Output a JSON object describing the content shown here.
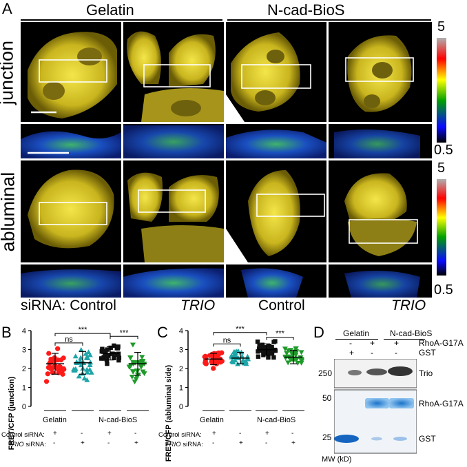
{
  "panel_A": {
    "letter": "A",
    "conditions": [
      "Gelatin",
      "N-cad-BioS"
    ],
    "rows": [
      "junction",
      "abluminal"
    ],
    "colorbar": {
      "max": "5",
      "min": "0.5"
    },
    "sirna_prefix": "siRNA:",
    "column_labels": [
      "Control",
      "TRIO",
      "Control",
      "TRIO"
    ]
  },
  "panel_B": {
    "letter": "B",
    "ylabel": "FRET/CFP (junction)",
    "yticks": [
      "0",
      "1",
      "2",
      "3",
      "4"
    ],
    "groups": [
      "Gelatin",
      "N-cad-BioS"
    ],
    "row1_label": "Control siRNA:",
    "row2_label_italic": "TRIO",
    "row2_label_rest": " siRNA:",
    "row1_signs": [
      "+",
      "-",
      "+",
      "-"
    ],
    "row2_signs": [
      "-",
      "+",
      "-",
      "+"
    ],
    "sig": [
      "***",
      "ns",
      "***"
    ]
  },
  "panel_C": {
    "letter": "C",
    "ylabel": "FRET/CFP (abluminal side)",
    "yticks": [
      "0",
      "1",
      "2",
      "3",
      "4"
    ],
    "groups": [
      "Gelatin",
      "N-cad-BioS"
    ],
    "row1_label": "Control siRNA:",
    "row2_label_italic": "TRIO",
    "row2_label_rest": " siRNA:",
    "row1_signs": [
      "+",
      "-",
      "+",
      "-"
    ],
    "row2_signs": [
      "-",
      "+",
      "-",
      "+"
    ],
    "sig": [
      "***",
      "ns",
      "***"
    ]
  },
  "panel_D": {
    "letter": "D",
    "groups": [
      "Gelatin",
      "N-cad-BioS"
    ],
    "row_rhoa_label": "RhoA-G17A",
    "row_gst_label": "GST",
    "row_rhoa_signs": [
      "-",
      "+",
      "+"
    ],
    "row_gst_signs": [
      "+",
      "-",
      "-"
    ],
    "bands": [
      "Trio",
      "RhoA-G17A",
      "GST"
    ],
    "mw_markers": [
      "250",
      "50",
      "25"
    ],
    "mw_label": "MW (kD)"
  },
  "chart_data": [
    {
      "type": "scatter",
      "title": "",
      "ylabel": "FRET/CFP (junction)",
      "ylim": [
        0,
        4
      ],
      "categories": [
        "Gelatin Control",
        "Gelatin TRIO",
        "N-cad-BioS Control",
        "N-cad-BioS TRIO"
      ],
      "series": [
        {
          "color": "#ff1a1a",
          "marker": "circle",
          "mean": 2.25,
          "sd": 0.55
        },
        {
          "color": "#1fa5a8",
          "marker": "triangle",
          "mean": 2.3,
          "sd": 0.6
        },
        {
          "color": "#111111",
          "marker": "square",
          "mean": 2.8,
          "sd": 0.35
        },
        {
          "color": "#1f9a2a",
          "marker": "triangle-down",
          "mean": 2.25,
          "sd": 0.6
        }
      ],
      "annotations": [
        "***",
        "ns",
        "***"
      ]
    },
    {
      "type": "scatter",
      "title": "",
      "ylabel": "FRET/CFP (abluminal side)",
      "ylim": [
        0,
        4
      ],
      "categories": [
        "Gelatin Control",
        "Gelatin TRIO",
        "N-cad-BioS Control",
        "N-cad-BioS TRIO"
      ],
      "series": [
        {
          "color": "#ff1a1a",
          "marker": "circle",
          "mean": 2.5,
          "sd": 0.3
        },
        {
          "color": "#1fa5a8",
          "marker": "triangle",
          "mean": 2.55,
          "sd": 0.3
        },
        {
          "color": "#111111",
          "marker": "square",
          "mean": 3.0,
          "sd": 0.3
        },
        {
          "color": "#1f9a2a",
          "marker": "triangle-down",
          "mean": 2.6,
          "sd": 0.35
        }
      ],
      "annotations": [
        "***",
        "ns",
        "***"
      ]
    }
  ]
}
